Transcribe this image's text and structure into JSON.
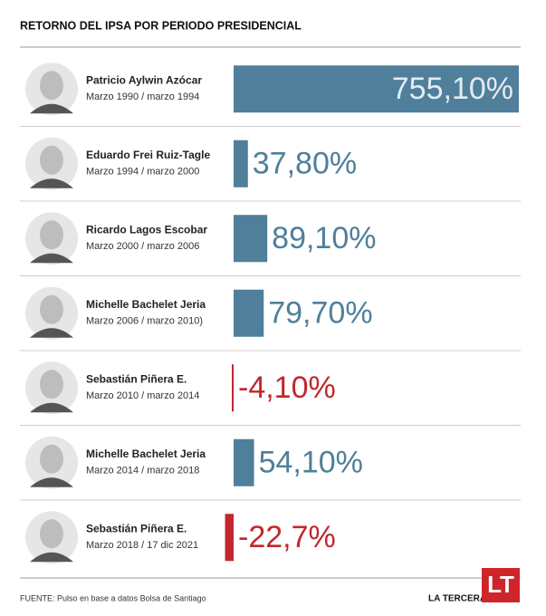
{
  "chart_data": {
    "type": "bar",
    "title": "RETORNO DEL IPSA POR PERIODO PRESIDENCIAL",
    "categories": [
      "Patricio Aylwin Azócar",
      "Eduardo Frei Ruiz-Tagle",
      "Ricardo Lagos Escobar",
      "Michelle Bachelet Jeria",
      "Sebastián Piñera E.",
      "Michelle Bachelet Jeria",
      "Sebastián Piñera E."
    ],
    "periods": [
      "Marzo 1990 / marzo 1994",
      "Marzo 1994 / marzo 2000",
      "Marzo 2000 / marzo 2006",
      "Marzo 2006 / marzo 2010)",
      "Marzo 2010 / marzo 2014",
      "Marzo 2014 / marzo 2018",
      "Marzo 2018 / 17 dic 2021"
    ],
    "values": [
      755.1,
      37.8,
      89.1,
      79.7,
      -4.1,
      54.1,
      -22.7
    ],
    "value_labels": [
      "755,10%",
      "37,80%",
      "89,10%",
      "79,70%",
      "-4,10%",
      "54,10%",
      "-22,7%"
    ],
    "color": "#4f7f9b",
    "negative_color": "#c1272d",
    "source": "FUENTE: Pulso en base a datos Bolsa de Santiago",
    "publisher": "LA TERCERA",
    "logo": "LT"
  }
}
